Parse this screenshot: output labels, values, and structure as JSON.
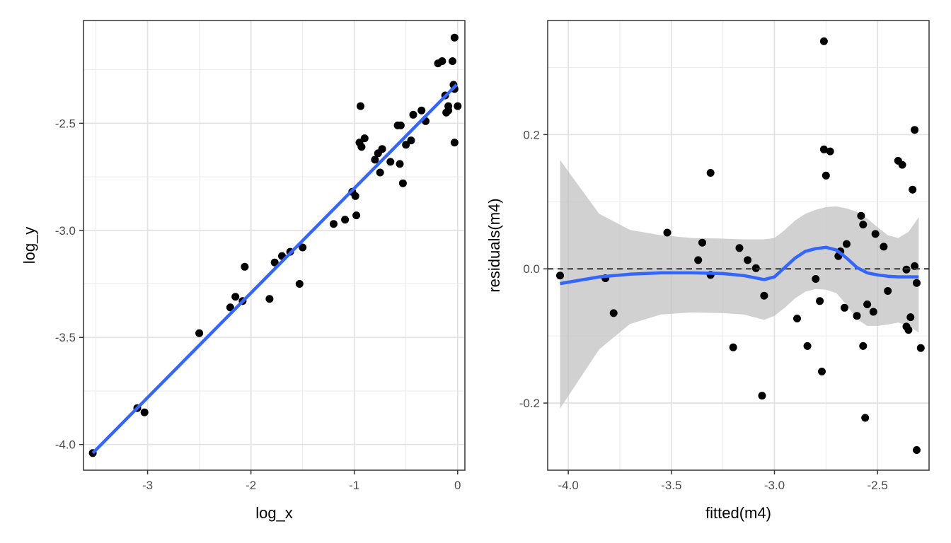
{
  "chart_data": [
    {
      "type": "scatter",
      "title": "",
      "xlabel": "log_x",
      "ylabel": "log_y",
      "xlim": [
        -3.62,
        0.07
      ],
      "ylim": [
        -4.12,
        -2.02
      ],
      "x_ticks": [
        -3,
        -2,
        -1,
        0
      ],
      "x_tick_labels": [
        "-3",
        "-2",
        "-1",
        "0"
      ],
      "y_ticks": [
        -4.0,
        -3.5,
        -3.0,
        -2.5
      ],
      "y_tick_labels": [
        "-4.0",
        "-3.5",
        "-3.0",
        "-2.5"
      ],
      "grid": true,
      "point_color": "#000000",
      "line_color": "#3366ff",
      "points": [
        [
          -3.53,
          -4.04
        ],
        [
          -3.1,
          -3.83
        ],
        [
          -3.03,
          -3.85
        ],
        [
          -2.5,
          -3.48
        ],
        [
          -2.2,
          -3.36
        ],
        [
          -2.15,
          -3.31
        ],
        [
          -2.08,
          -3.33
        ],
        [
          -2.06,
          -3.17
        ],
        [
          -1.82,
          -3.32
        ],
        [
          -1.77,
          -3.15
        ],
        [
          -1.7,
          -3.12
        ],
        [
          -1.62,
          -3.1
        ],
        [
          -1.53,
          -3.25
        ],
        [
          -1.5,
          -3.08
        ],
        [
          -1.2,
          -2.97
        ],
        [
          -1.09,
          -2.95
        ],
        [
          -1.02,
          -2.82
        ],
        [
          -0.99,
          -2.84
        ],
        [
          -0.98,
          -2.93
        ],
        [
          -0.95,
          -2.59
        ],
        [
          -0.93,
          -2.61
        ],
        [
          -0.94,
          -2.42
        ],
        [
          -0.9,
          -2.57
        ],
        [
          -0.8,
          -2.67
        ],
        [
          -0.77,
          -2.64
        ],
        [
          -0.75,
          -2.73
        ],
        [
          -0.73,
          -2.62
        ],
        [
          -0.65,
          -2.68
        ],
        [
          -0.58,
          -2.51
        ],
        [
          -0.56,
          -2.69
        ],
        [
          -0.55,
          -2.51
        ],
        [
          -0.53,
          -2.78
        ],
        [
          -0.5,
          -2.6
        ],
        [
          -0.45,
          -2.58
        ],
        [
          -0.43,
          -2.46
        ],
        [
          -0.35,
          -2.44
        ],
        [
          -0.31,
          -2.49
        ],
        [
          -0.19,
          -2.22
        ],
        [
          -0.15,
          -2.21
        ],
        [
          -0.12,
          -2.37
        ],
        [
          -0.11,
          -2.45
        ],
        [
          -0.09,
          -2.44
        ],
        [
          -0.09,
          -2.42
        ],
        [
          -0.05,
          -2.21
        ],
        [
          -0.04,
          -2.32
        ],
        [
          -0.03,
          -2.59
        ],
        [
          -0.03,
          -2.34
        ],
        [
          -0.03,
          -2.1
        ],
        [
          0.0,
          -2.42
        ]
      ],
      "fit_line": {
        "x": [
          -3.53,
          -0.01
        ],
        "y": [
          -4.04,
          -2.32
        ]
      }
    },
    {
      "type": "scatter",
      "title": "",
      "xlabel": "fitted(m4)",
      "ylabel": "residuals(m4)",
      "xlim": [
        -4.1,
        -2.25
      ],
      "ylim": [
        -0.3,
        0.37
      ],
      "x_ticks": [
        -4.0,
        -3.5,
        -3.0,
        -2.5
      ],
      "x_tick_labels": [
        "-4.0",
        "-3.5",
        "-3.0",
        "-2.5"
      ],
      "y_ticks": [
        -0.2,
        0.0,
        0.2
      ],
      "y_tick_labels": [
        "-0.2",
        "0.0",
        "0.2"
      ],
      "grid": true,
      "reference_line": {
        "y": 0,
        "style": "dashed"
      },
      "point_color": "#000000",
      "smooth_color": "#3366ff",
      "band_color": "#bfbfbf",
      "points": [
        [
          -4.04,
          -0.01
        ],
        [
          -3.82,
          -0.014
        ],
        [
          -3.78,
          -0.066
        ],
        [
          -3.52,
          0.054
        ],
        [
          -3.37,
          0.013
        ],
        [
          -3.35,
          0.039
        ],
        [
          -3.31,
          -0.009
        ],
        [
          -3.31,
          0.143
        ],
        [
          -3.2,
          -0.117
        ],
        [
          -3.17,
          0.031
        ],
        [
          -3.13,
          0.013
        ],
        [
          -3.09,
          0.001
        ],
        [
          -3.06,
          -0.189
        ],
        [
          -3.05,
          -0.04
        ],
        [
          -2.89,
          -0.074
        ],
        [
          -2.84,
          -0.115
        ],
        [
          -2.8,
          -0.015
        ],
        [
          -2.78,
          -0.048
        ],
        [
          -2.77,
          -0.153
        ],
        [
          -2.76,
          0.339
        ],
        [
          -2.76,
          0.178
        ],
        [
          -2.75,
          0.139
        ],
        [
          -2.73,
          0.175
        ],
        [
          -2.69,
          0.019
        ],
        [
          -2.68,
          0.026
        ],
        [
          -2.66,
          -0.058
        ],
        [
          -2.65,
          0.037
        ],
        [
          -2.6,
          -0.07
        ],
        [
          -2.58,
          0.079
        ],
        [
          -2.57,
          0.066
        ],
        [
          -2.57,
          -0.115
        ],
        [
          -2.56,
          -0.222
        ],
        [
          -2.55,
          -0.053
        ],
        [
          -2.52,
          -0.064
        ],
        [
          -2.51,
          0.052
        ],
        [
          -2.47,
          0.033
        ],
        [
          -2.45,
          -0.033
        ],
        [
          -2.4,
          0.161
        ],
        [
          -2.38,
          0.155
        ],
        [
          -2.36,
          -0.001
        ],
        [
          -2.36,
          -0.086
        ],
        [
          -2.35,
          -0.091
        ],
        [
          -2.34,
          -0.072
        ],
        [
          -2.33,
          0.118
        ],
        [
          -2.32,
          0.004
        ],
        [
          -2.32,
          0.207
        ],
        [
          -2.31,
          -0.021
        ],
        [
          -2.31,
          -0.27
        ],
        [
          -2.29,
          -0.118
        ]
      ],
      "smooth": {
        "x": [
          -4.04,
          -3.85,
          -3.7,
          -3.55,
          -3.4,
          -3.25,
          -3.15,
          -3.05,
          -3.0,
          -2.95,
          -2.9,
          -2.85,
          -2.8,
          -2.75,
          -2.7,
          -2.65,
          -2.6,
          -2.55,
          -2.5,
          -2.45,
          -2.4,
          -2.35,
          -2.3
        ],
        "y": [
          -0.022,
          -0.012,
          -0.008,
          -0.006,
          -0.006,
          -0.007,
          -0.01,
          -0.016,
          -0.012,
          0.002,
          0.016,
          0.026,
          0.03,
          0.032,
          0.028,
          0.016,
          0.002,
          -0.006,
          -0.009,
          -0.011,
          -0.012,
          -0.012,
          -0.012
        ],
        "upper": [
          0.162,
          0.082,
          0.058,
          0.05,
          0.046,
          0.045,
          0.044,
          0.044,
          0.046,
          0.058,
          0.072,
          0.082,
          0.088,
          0.092,
          0.093,
          0.09,
          0.085,
          0.075,
          0.062,
          0.05,
          0.046,
          0.055,
          0.077
        ],
        "lower": [
          -0.208,
          -0.12,
          -0.082,
          -0.068,
          -0.065,
          -0.066,
          -0.068,
          -0.076,
          -0.07,
          -0.058,
          -0.044,
          -0.034,
          -0.03,
          -0.031,
          -0.036,
          -0.054,
          -0.075,
          -0.085,
          -0.085,
          -0.083,
          -0.08,
          -0.085,
          -0.095
        ]
      }
    }
  ]
}
